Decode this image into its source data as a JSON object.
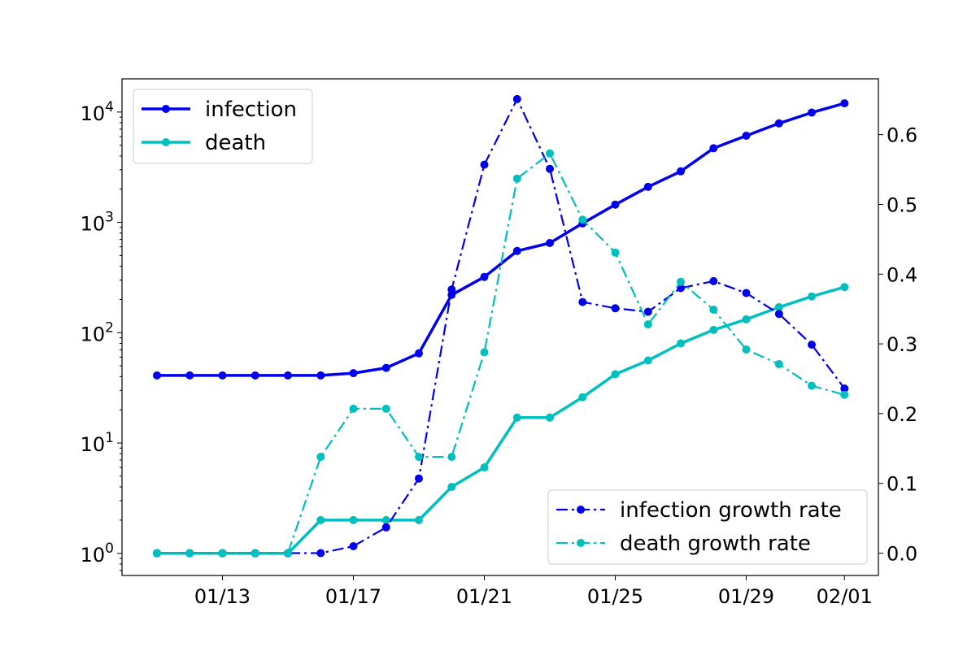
{
  "chart_data": {
    "type": "line",
    "x": [
      "01/11",
      "01/12",
      "01/13",
      "01/14",
      "01/15",
      "01/16",
      "01/17",
      "01/18",
      "01/19",
      "01/20",
      "01/21",
      "01/22",
      "01/23",
      "01/24",
      "01/25",
      "01/26",
      "01/27",
      "01/28",
      "01/29",
      "01/30",
      "01/31",
      "02/01"
    ],
    "x_ticks": [
      "01/13",
      "01/17",
      "01/21",
      "01/25",
      "01/29",
      "02/01"
    ],
    "y_left": {
      "scale": "log",
      "lim": [
        0.63,
        20000
      ],
      "ticks": [
        1,
        10,
        100,
        1000,
        10000
      ],
      "tick_labels": [
        [
          "10",
          "0"
        ],
        [
          "10",
          "1"
        ],
        [
          "10",
          "2"
        ],
        [
          "10",
          "3"
        ],
        [
          "10",
          "4"
        ]
      ]
    },
    "y_right": {
      "scale": "linear",
      "lim": [
        -0.032,
        0.68
      ],
      "ticks": [
        0.0,
        0.1,
        0.2,
        0.3,
        0.4,
        0.5,
        0.6
      ],
      "tick_labels": [
        "0.0",
        "0.1",
        "0.2",
        "0.3",
        "0.4",
        "0.5",
        "0.6"
      ]
    },
    "series": [
      {
        "name": "infection",
        "axis": "left",
        "color": "#0000ee",
        "style": "solid",
        "values": [
          41,
          41,
          41,
          41,
          41,
          41,
          43,
          48,
          65,
          220,
          320,
          550,
          650,
          980,
          1450,
          2100,
          2900,
          4700,
          6100,
          7900,
          9900,
          12000
        ]
      },
      {
        "name": "death",
        "axis": "left",
        "color": "#00bfbf",
        "style": "solid",
        "values": [
          1,
          1,
          1,
          1,
          1,
          2,
          2,
          2,
          2,
          4,
          6,
          17,
          17,
          26,
          42,
          56,
          80,
          106,
          132,
          170,
          213,
          259
        ]
      },
      {
        "name": "infection growth rate",
        "axis": "right",
        "color": "#0000ee",
        "style": "dashdot",
        "values": [
          0.0,
          0.0,
          0.0,
          0.0,
          0.0,
          0.0,
          0.01,
          0.037,
          0.107,
          0.378,
          0.557,
          0.651,
          0.551,
          0.36,
          0.351,
          0.346,
          0.38,
          0.39,
          0.373,
          0.343,
          0.299,
          0.236
        ]
      },
      {
        "name": "death growth rate",
        "axis": "right",
        "color": "#00bfbf",
        "style": "dashdot",
        "values": [
          0.0,
          0.0,
          0.0,
          0.0,
          0.0,
          0.138,
          0.207,
          0.207,
          0.138,
          0.138,
          0.288,
          0.537,
          0.573,
          0.478,
          0.431,
          0.328,
          0.389,
          0.349,
          0.292,
          0.271,
          0.24,
          0.227
        ]
      }
    ],
    "legends": [
      {
        "placement": "upper-left",
        "entries": [
          "infection",
          "death"
        ]
      },
      {
        "placement": "lower-right",
        "entries": [
          "infection growth rate",
          "death growth rate"
        ]
      }
    ],
    "grid": false
  }
}
